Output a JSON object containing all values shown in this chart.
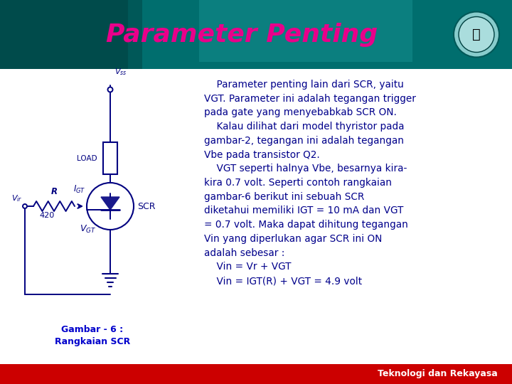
{
  "title": "Parameter Penting",
  "title_color": "#E8008A",
  "title_fontsize": 26,
  "header_top_color": "#006060",
  "header_bot_color": "#004848",
  "body_bg_color": "#FFFFFF",
  "footer_bg_color": "#CC0000",
  "footer_text": "Teknologi dan Rekayasa",
  "footer_text_color": "#FFFFFF",
  "footer_fontsize": 9,
  "caption_text": "Gambar - 6 :\nRangkaian SCR",
  "caption_color": "#0000CC",
  "caption_fontsize": 9,
  "text_color": "#00008B",
  "text_fontsize": 9.8,
  "circuit_color": "#000080",
  "bg_color": "#FFFFFF"
}
